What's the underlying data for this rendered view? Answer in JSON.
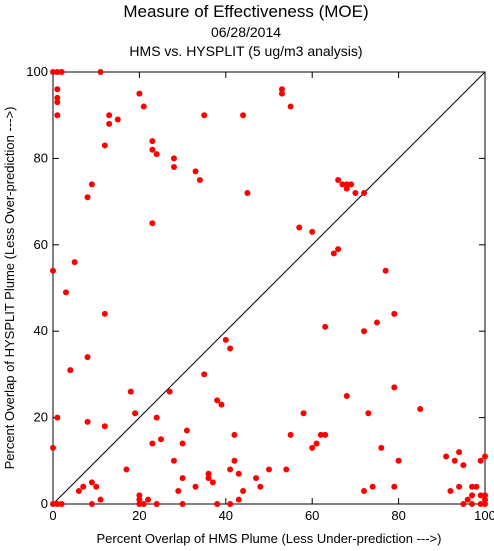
{
  "chart_data": {
    "type": "scatter",
    "title": "Measure of Effectiveness (MOE)",
    "subtitle": "06/28/2014",
    "subtitle2": "HMS vs. HYSPLIT  (5 ug/m3 analysis)",
    "xlabel": "Percent Overlap of HMS Plume (Less Under-prediction --->)",
    "ylabel": "Percent Overlap of HYSPLIT Plume (Less Over-prediction --->)",
    "xlim": [
      0,
      100
    ],
    "ylim": [
      0,
      100
    ],
    "xticks": [
      "0",
      "20",
      "40",
      "60",
      "80",
      "100"
    ],
    "yticks": [
      "0",
      "20",
      "40",
      "60",
      "80",
      "100"
    ],
    "grid": false,
    "reference_line": "y = x",
    "point_color": "#ff0000",
    "points": [
      [
        0,
        100
      ],
      [
        1,
        100
      ],
      [
        2,
        100
      ],
      [
        11,
        100
      ],
      [
        1,
        96
      ],
      [
        1,
        94
      ],
      [
        1,
        93
      ],
      [
        1,
        90
      ],
      [
        13,
        90
      ],
      [
        13,
        88
      ],
      [
        15,
        89
      ],
      [
        20,
        95
      ],
      [
        21,
        92
      ],
      [
        12,
        83
      ],
      [
        23,
        84
      ],
      [
        23,
        82
      ],
      [
        24,
        81
      ],
      [
        28,
        80
      ],
      [
        28,
        78
      ],
      [
        33,
        77
      ],
      [
        34,
        75
      ],
      [
        35,
        90
      ],
      [
        44,
        90
      ],
      [
        45,
        72
      ],
      [
        53,
        96
      ],
      [
        53,
        95
      ],
      [
        55,
        92
      ],
      [
        9,
        74
      ],
      [
        8,
        71
      ],
      [
        23,
        65
      ],
      [
        66,
        75
      ],
      [
        67,
        74
      ],
      [
        68,
        74
      ],
      [
        68,
        73
      ],
      [
        69,
        74
      ],
      [
        70,
        72
      ],
      [
        72,
        72
      ],
      [
        57,
        64
      ],
      [
        60,
        63
      ],
      [
        65,
        58
      ],
      [
        66,
        59
      ],
      [
        0,
        54
      ],
      [
        5,
        56
      ],
      [
        3,
        49
      ],
      [
        12,
        44
      ],
      [
        8,
        34
      ],
      [
        4,
        31
      ],
      [
        63,
        41
      ],
      [
        72,
        40
      ],
      [
        75,
        42
      ],
      [
        77,
        54
      ],
      [
        79,
        44
      ],
      [
        40,
        38
      ],
      [
        41,
        36
      ],
      [
        35,
        30
      ],
      [
        27,
        26
      ],
      [
        18,
        26
      ],
      [
        19,
        21
      ],
      [
        24,
        20
      ],
      [
        38,
        24
      ],
      [
        39,
        23
      ],
      [
        1,
        20
      ],
      [
        8,
        19
      ],
      [
        12,
        18
      ],
      [
        17,
        8
      ],
      [
        23,
        14
      ],
      [
        25,
        15
      ],
      [
        30,
        14
      ],
      [
        31,
        17
      ],
      [
        28,
        10
      ],
      [
        42,
        16
      ],
      [
        42,
        10
      ],
      [
        41,
        8
      ],
      [
        43,
        7
      ],
      [
        36,
        7
      ],
      [
        36,
        6
      ],
      [
        37,
        5
      ],
      [
        30,
        6
      ],
      [
        29,
        3
      ],
      [
        33,
        4
      ],
      [
        58,
        21
      ],
      [
        55,
        16
      ],
      [
        60,
        13
      ],
      [
        61,
        14
      ],
      [
        62,
        16
      ],
      [
        63,
        16
      ],
      [
        68,
        25
      ],
      [
        73,
        21
      ],
      [
        76,
        13
      ],
      [
        79,
        27
      ],
      [
        80,
        10
      ],
      [
        85,
        22
      ],
      [
        50,
        8
      ],
      [
        54,
        8
      ],
      [
        47,
        6
      ],
      [
        48,
        4
      ],
      [
        44,
        3
      ],
      [
        43,
        1
      ],
      [
        0,
        13
      ],
      [
        0,
        0
      ],
      [
        1,
        0
      ],
      [
        2,
        0
      ],
      [
        6,
        3
      ],
      [
        7,
        4
      ],
      [
        9,
        5
      ],
      [
        10,
        4
      ],
      [
        9,
        0
      ],
      [
        11,
        1
      ],
      [
        20,
        2
      ],
      [
        20,
        1
      ],
      [
        20,
        0
      ],
      [
        21,
        0
      ],
      [
        22,
        1
      ],
      [
        24,
        0
      ],
      [
        30,
        0
      ],
      [
        38,
        0
      ],
      [
        41,
        0
      ],
      [
        72,
        3
      ],
      [
        74,
        4
      ],
      [
        79,
        4
      ],
      [
        91,
        11
      ],
      [
        92,
        3
      ],
      [
        93,
        10
      ],
      [
        94,
        12
      ],
      [
        95,
        9
      ],
      [
        96,
        1
      ],
      [
        97,
        2
      ],
      [
        98,
        4
      ],
      [
        99,
        2
      ],
      [
        94,
        4
      ],
      [
        97,
        4
      ],
      [
        99,
        10
      ],
      [
        100,
        11
      ],
      [
        100,
        2
      ],
      [
        100,
        1
      ],
      [
        100,
        0
      ],
      [
        95,
        0
      ],
      [
        97,
        0
      ],
      [
        99,
        0
      ]
    ]
  }
}
